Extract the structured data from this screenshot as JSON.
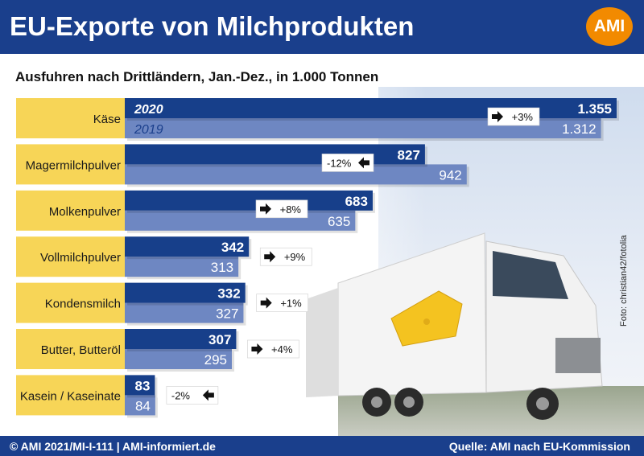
{
  "header": {
    "title": "EU-Exporte von Milchprodukten",
    "logo_text": "AMI"
  },
  "subtitle": "Ausfuhren nach Drittländern, Jan.-Dez., in 1.000 Tonnen",
  "photo_credit": "Foto: christian42/fotolia",
  "footer": {
    "left": "© AMI 2021/MI-I-111 | AMI-informiert.de",
    "right": "Quelle: AMI nach EU-Kommission"
  },
  "colors": {
    "brand_blue": "#1a3f8c",
    "series_2020": "#173f8a",
    "series_2019": "#6e87c2",
    "label_yellow": "#f7d557",
    "logo_orange": "#f28a00"
  },
  "chart_data": {
    "type": "bar",
    "orientation": "horizontal",
    "categories": [
      "Käse",
      "Magermilchpulver",
      "Molkenpulver",
      "Vollmilchpulver",
      "Kondensmilch",
      "Butter, Butteröl",
      "Kasein / Kaseinate"
    ],
    "series": [
      {
        "name": "2020",
        "values": [
          1355,
          827,
          683,
          342,
          332,
          307,
          83
        ],
        "labels": [
          "1.355",
          "827",
          "683",
          "342",
          "332",
          "307",
          "83"
        ]
      },
      {
        "name": "2019",
        "values": [
          1312,
          942,
          635,
          313,
          327,
          295,
          84
        ],
        "labels": [
          "1.312",
          "942",
          "635",
          "313",
          "327",
          "295",
          "84"
        ]
      }
    ],
    "changes": [
      "+3%",
      "-12%",
      "+8%",
      "+9%",
      "+1%",
      "+4%",
      "-2%"
    ],
    "change_direction": [
      "right",
      "left",
      "right",
      "right",
      "right",
      "right",
      "left"
    ],
    "xlim": [
      0,
      1355
    ],
    "unit": "1.000 Tonnen",
    "legend_placement": "inside first bars"
  }
}
